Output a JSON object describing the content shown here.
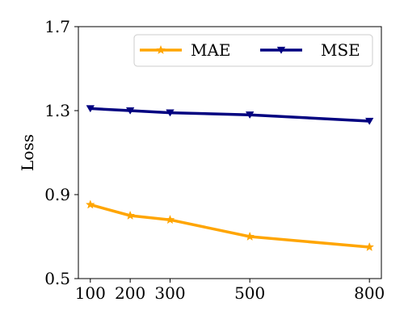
{
  "chart_data": {
    "type": "line",
    "title": "",
    "xlabel": "",
    "ylabel": "Loss",
    "x": [
      100,
      200,
      300,
      500,
      800
    ],
    "xticks": [
      "100",
      "200",
      "300",
      "500",
      "800"
    ],
    "xlim": [
      70,
      830
    ],
    "ylim": [
      0.5,
      1.7
    ],
    "yticks": [
      "0.5",
      "0.9",
      "1.3",
      "1.7"
    ],
    "grid": false,
    "legend": "top-right",
    "series": [
      {
        "name": "MAE",
        "values": [
          0.852,
          0.8,
          0.78,
          0.7,
          0.65
        ],
        "color": "#FFA500",
        "marker": "star"
      },
      {
        "name": "MSE",
        "values": [
          1.31,
          1.3,
          1.29,
          1.28,
          1.25
        ],
        "color": "#000080",
        "marker": "triangle-down"
      }
    ]
  }
}
